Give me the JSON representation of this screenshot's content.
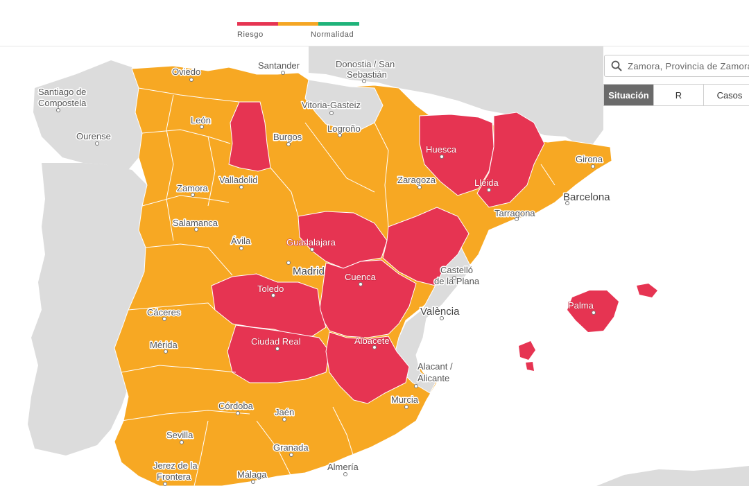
{
  "legend": {
    "colors": {
      "riesgo": "#e63452",
      "intermedio": "#f5a623",
      "normalidad": "#1fb37a"
    },
    "riesgo_label": "Riesgo",
    "normalidad_label": "Normalidad"
  },
  "search": {
    "value": "Zamora, Provincia de Zamora"
  },
  "tabs": [
    {
      "label": "Situación",
      "active": true
    },
    {
      "label": "R",
      "active": false
    },
    {
      "label": "Casos",
      "active": false
    }
  ],
  "map": {
    "colors": {
      "risk": "#e63452",
      "mid": "#f7a823",
      "grey": "#dcdcdc"
    },
    "labels": {
      "oviedo": "Oviedo",
      "santander": "Santander",
      "donostia": "Donostia / San",
      "sebastian": "Sebastián",
      "santiago": "Santiago de",
      "compostela": "Compostela",
      "vitoria": "Vitoria-Gasteiz",
      "leon": "León",
      "logrono": "Logroño",
      "burgos": "Burgos",
      "ourense": "Ourense",
      "huesca": "Huesca",
      "girona": "Girona",
      "lleida": "Lleida",
      "zamora": "Zamora",
      "valladolid": "Valladolid",
      "zaragoza": "Zaragoza",
      "barcelona": "Barcelona",
      "salamanca": "Salamanca",
      "tarragona": "Tarragona",
      "avila": "Ávila",
      "guadalajara": "Guadalajara",
      "madrid": "Madrid",
      "castello": "Castelló",
      "laplana": "de la Plana",
      "cuenca": "Cuenca",
      "toledo": "Toledo",
      "valencia": "València",
      "palma": "Palma",
      "caceres": "Cáceres",
      "merida": "Mérida",
      "ciudadreal": "Ciudad Real",
      "albacete": "Albacete",
      "alacant": "Alacant /",
      "alicante": "Alicante",
      "murcia": "Murcia",
      "cordoba": "Córdoba",
      "jaen": "Jaén",
      "sevilla": "Sevilla",
      "granada": "Granada",
      "jerez": "Jerez de la",
      "frontera": "Frontera",
      "malaga": "Málaga",
      "almeria": "Almería"
    }
  }
}
